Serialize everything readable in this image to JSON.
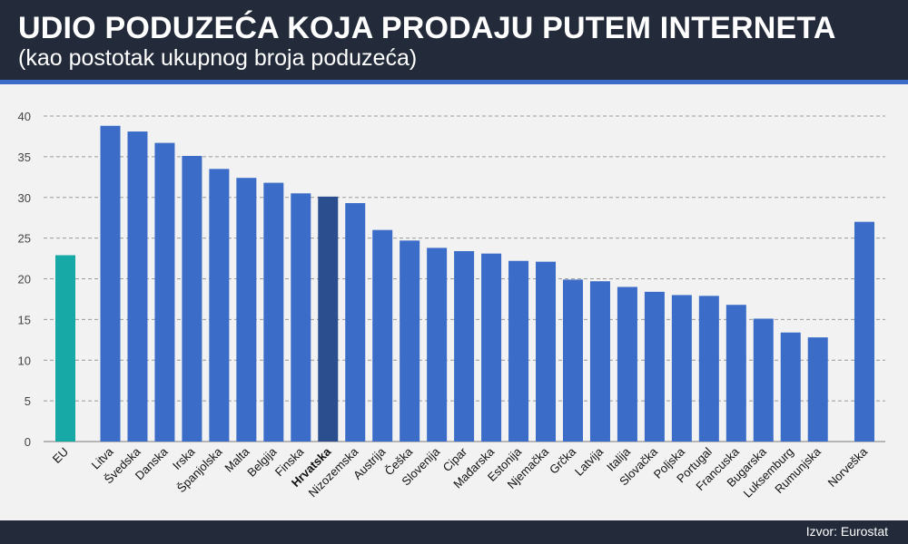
{
  "header": {
    "title": "UDIO PODUZEĆA KOJA PRODAJU PUTEM INTERNETA",
    "subtitle": "(kao postotak ukupnog broja poduzeća)"
  },
  "footer": {
    "source": "Izvor: Eurostat"
  },
  "colors": {
    "header_bg": "#232b3a",
    "accent_line": "#3a6cc8",
    "bar_default": "#3a6cc8",
    "bar_eu": "#17a9a6",
    "bar_highlight": "#2b4f8e",
    "grid": "#9a9a9a",
    "background": "#f2f2f2"
  },
  "chart_data": {
    "type": "bar",
    "title": "UDIO PODUZEĆA KOJA PRODAJU PUTEM INTERNETA",
    "subtitle": "(kao postotak ukupnog broja poduzeća)",
    "xlabel": "",
    "ylabel": "",
    "ylim": [
      0,
      40
    ],
    "yticks": [
      0,
      5,
      10,
      15,
      20,
      25,
      30,
      35,
      40
    ],
    "grid": true,
    "grid_style": "dashed",
    "categories": [
      "EU",
      "Litva",
      "Švedska",
      "Danska",
      "Irska",
      "Španjolska",
      "Malta",
      "Belgija",
      "Finska",
      "Hrvatska",
      "Nizozemska",
      "Austrija",
      "Češka",
      "Slovenija",
      "Cipar",
      "Mađarska",
      "Estonija",
      "Njemačka",
      "Grčka",
      "Latvija",
      "Italija",
      "Slovačka",
      "Poljska",
      "Portugal",
      "Francuska",
      "Bugarska",
      "Luksemburg",
      "Rumunjska",
      "Norveška"
    ],
    "values": [
      22.9,
      38.8,
      38.1,
      36.7,
      35.1,
      33.5,
      32.4,
      31.8,
      30.5,
      30.1,
      29.3,
      26.0,
      24.7,
      23.8,
      23.4,
      23.1,
      22.2,
      22.1,
      19.9,
      19.7,
      19.0,
      18.4,
      18.0,
      17.9,
      16.8,
      15.1,
      13.4,
      12.8,
      27.0
    ],
    "highlight": {
      "EU": "bar_eu",
      "Hrvatska": "bar_highlight"
    },
    "bold_labels": [
      "Hrvatska"
    ]
  }
}
